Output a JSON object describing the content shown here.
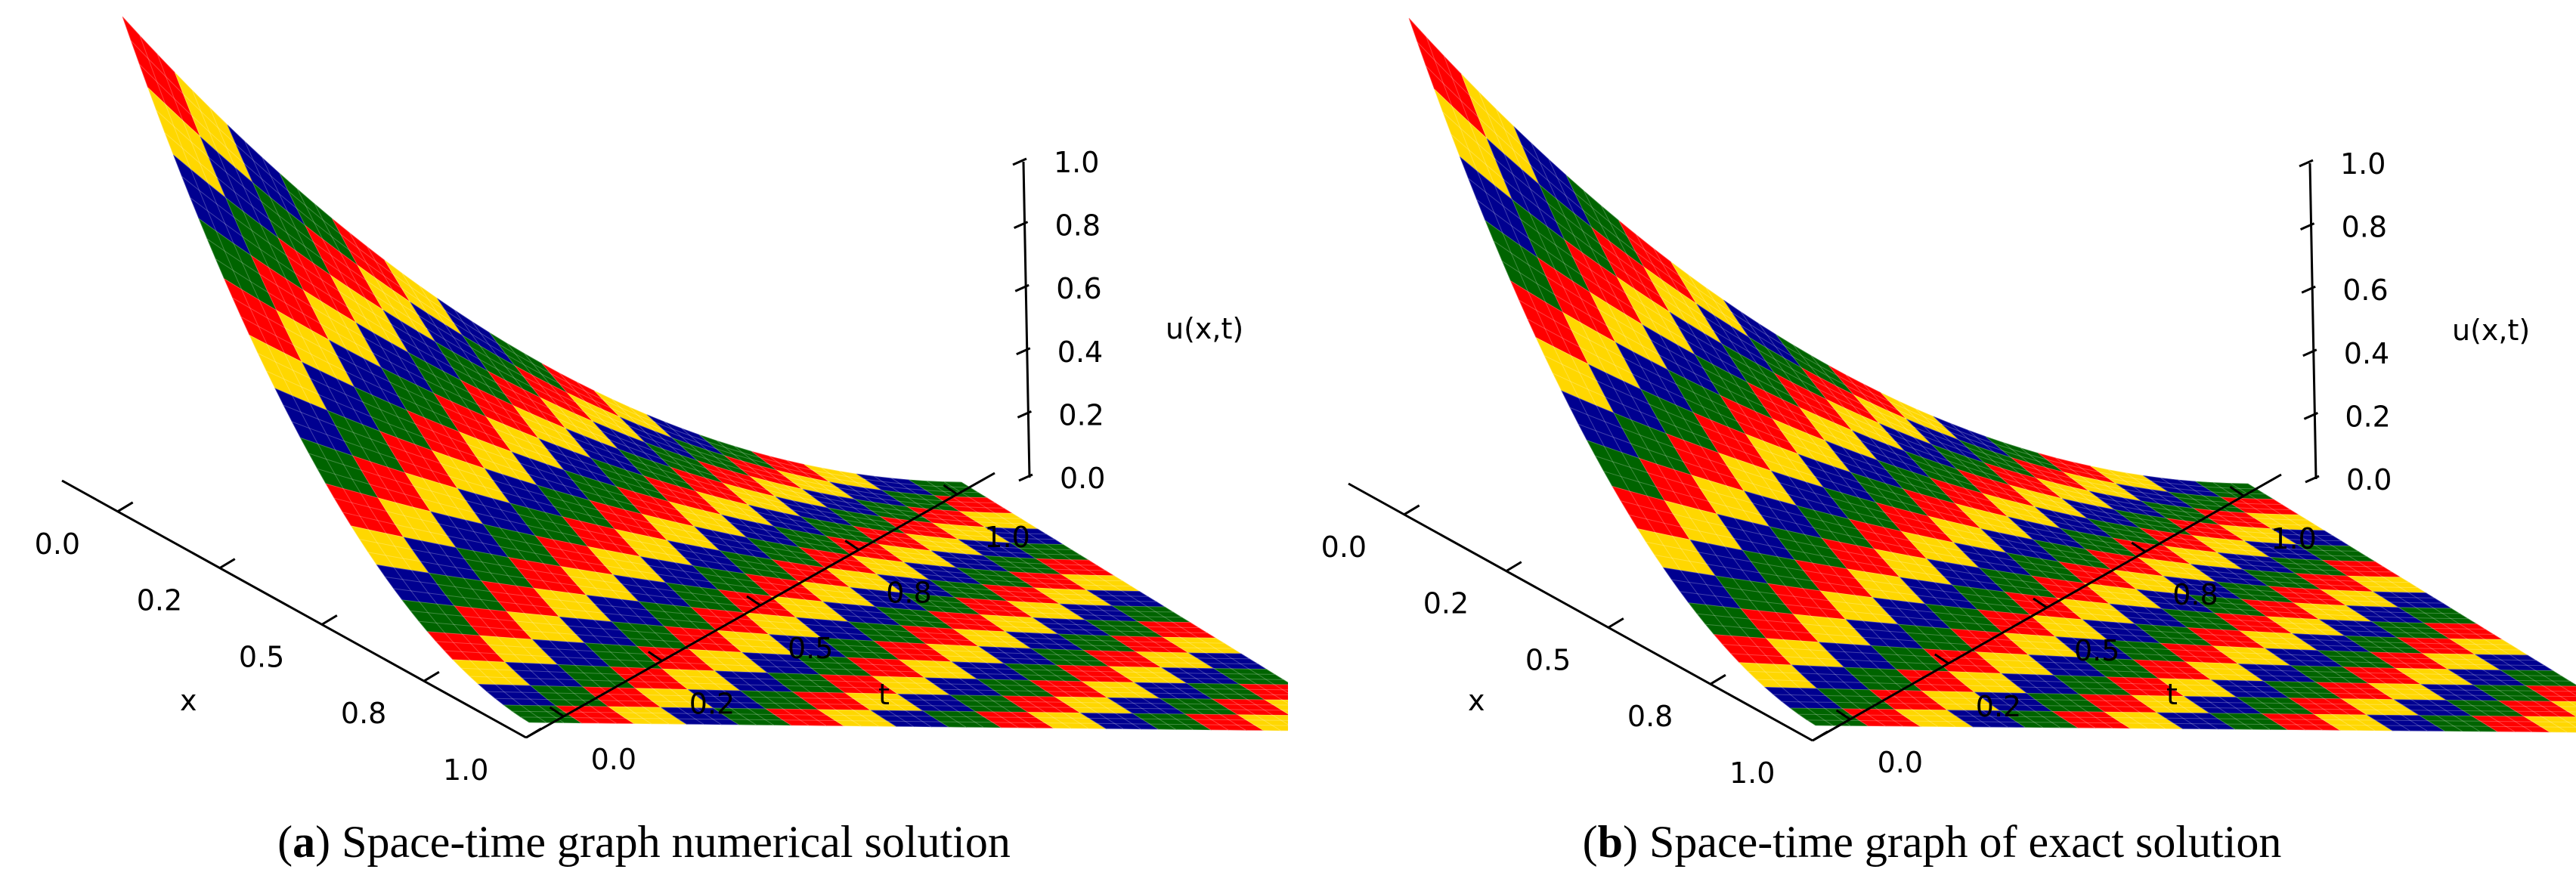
{
  "chart_data": [
    {
      "type": "surface",
      "surface_style": "checkerboard",
      "caption_letter": "a",
      "caption_text": " Space-time graph numerical solution",
      "xlabel": "x",
      "ylabel": "t",
      "zlabel": "u(x,t)",
      "x_ticks": [
        "0.0",
        "0.2",
        "0.5",
        "0.8",
        "1.0"
      ],
      "t_ticks": [
        "0.0",
        "0.2",
        "0.5",
        "0.8",
        "1.0"
      ],
      "z_ticks": [
        "0.0",
        "0.2",
        "0.4",
        "0.6",
        "0.8",
        "1.0"
      ],
      "xlim": [
        0,
        1
      ],
      "tlim": [
        0,
        1
      ],
      "zlim": [
        0,
        1
      ],
      "grid": false,
      "surface_colors": [
        "#ff0000",
        "#ffd700",
        "#000090",
        "#006400"
      ],
      "surface_function": "u(x,t) = (1 - x)^2 * (1 - t)^2",
      "surface_values": {
        "x": [
          0,
          0.25,
          0.5,
          0.75,
          1
        ],
        "t": [
          0,
          0.25,
          0.5,
          0.75,
          1
        ],
        "u": [
          [
            1.0,
            0.5625,
            0.25,
            0.0625,
            0.0
          ],
          [
            0.5625,
            0.3164,
            0.1406,
            0.0352,
            0.0
          ],
          [
            0.25,
            0.1406,
            0.0625,
            0.0156,
            0.0
          ],
          [
            0.0625,
            0.0352,
            0.0156,
            0.0039,
            0.0
          ],
          [
            0.0,
            0.0,
            0.0,
            0.0,
            0.0
          ]
        ]
      }
    },
    {
      "type": "surface",
      "surface_style": "checkerboard",
      "caption_letter": "b",
      "caption_text": " Space-time graph of exact solution",
      "xlabel": "x",
      "ylabel": "t",
      "zlabel": "u(x,t)",
      "x_ticks": [
        "0.0",
        "0.2",
        "0.5",
        "0.8",
        "1.0"
      ],
      "t_ticks": [
        "0.0",
        "0.2",
        "0.5",
        "0.8",
        "1.0"
      ],
      "z_ticks": [
        "0.0",
        "0.2",
        "0.4",
        "0.6",
        "0.8",
        "1.0"
      ],
      "xlim": [
        0,
        1
      ],
      "tlim": [
        0,
        1
      ],
      "zlim": [
        0,
        1
      ],
      "grid": false,
      "surface_colors": [
        "#ff0000",
        "#ffd700",
        "#000090",
        "#006400"
      ],
      "surface_function": "u(x,t) = (1 - x)^2 * (1 - t)^2",
      "surface_values": {
        "x": [
          0,
          0.25,
          0.5,
          0.75,
          1
        ],
        "t": [
          0,
          0.25,
          0.5,
          0.75,
          1
        ],
        "u": [
          [
            1.0,
            0.5625,
            0.25,
            0.0625,
            0.0
          ],
          [
            0.5625,
            0.3164,
            0.1406,
            0.0352,
            0.0
          ],
          [
            0.25,
            0.1406,
            0.0625,
            0.0156,
            0.0
          ],
          [
            0.0625,
            0.0352,
            0.0156,
            0.0039,
            0.0
          ],
          [
            0.0,
            0.0,
            0.0,
            0.0,
            0.0
          ]
        ]
      }
    }
  ]
}
